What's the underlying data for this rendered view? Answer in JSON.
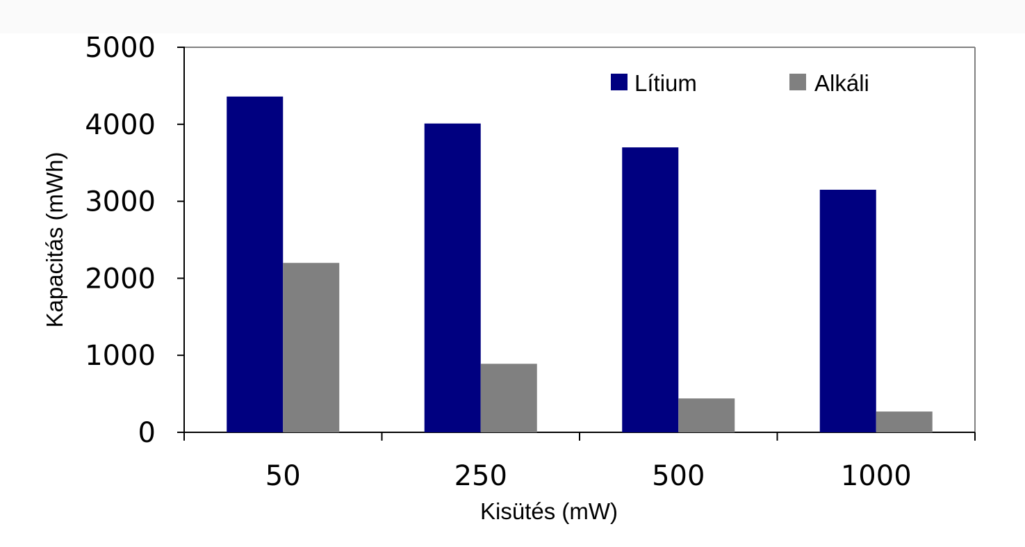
{
  "chart_data": {
    "type": "bar",
    "categories": [
      "50",
      "250",
      "500",
      "1000"
    ],
    "series": [
      {
        "name": "Lítium",
        "color": "#000080",
        "values": [
          4360,
          4010,
          3700,
          3150
        ]
      },
      {
        "name": "Alkáli",
        "color": "#808080",
        "values": [
          2200,
          890,
          440,
          270
        ]
      }
    ],
    "xlabel": "Kisütés (mW)",
    "ylabel": "Kapacitás (mWh)",
    "ylim": [
      0,
      5000
    ],
    "yticks": [
      "0",
      "1000",
      "2000",
      "3000",
      "4000",
      "5000"
    ],
    "grid": false,
    "legend_position": "top-right"
  }
}
